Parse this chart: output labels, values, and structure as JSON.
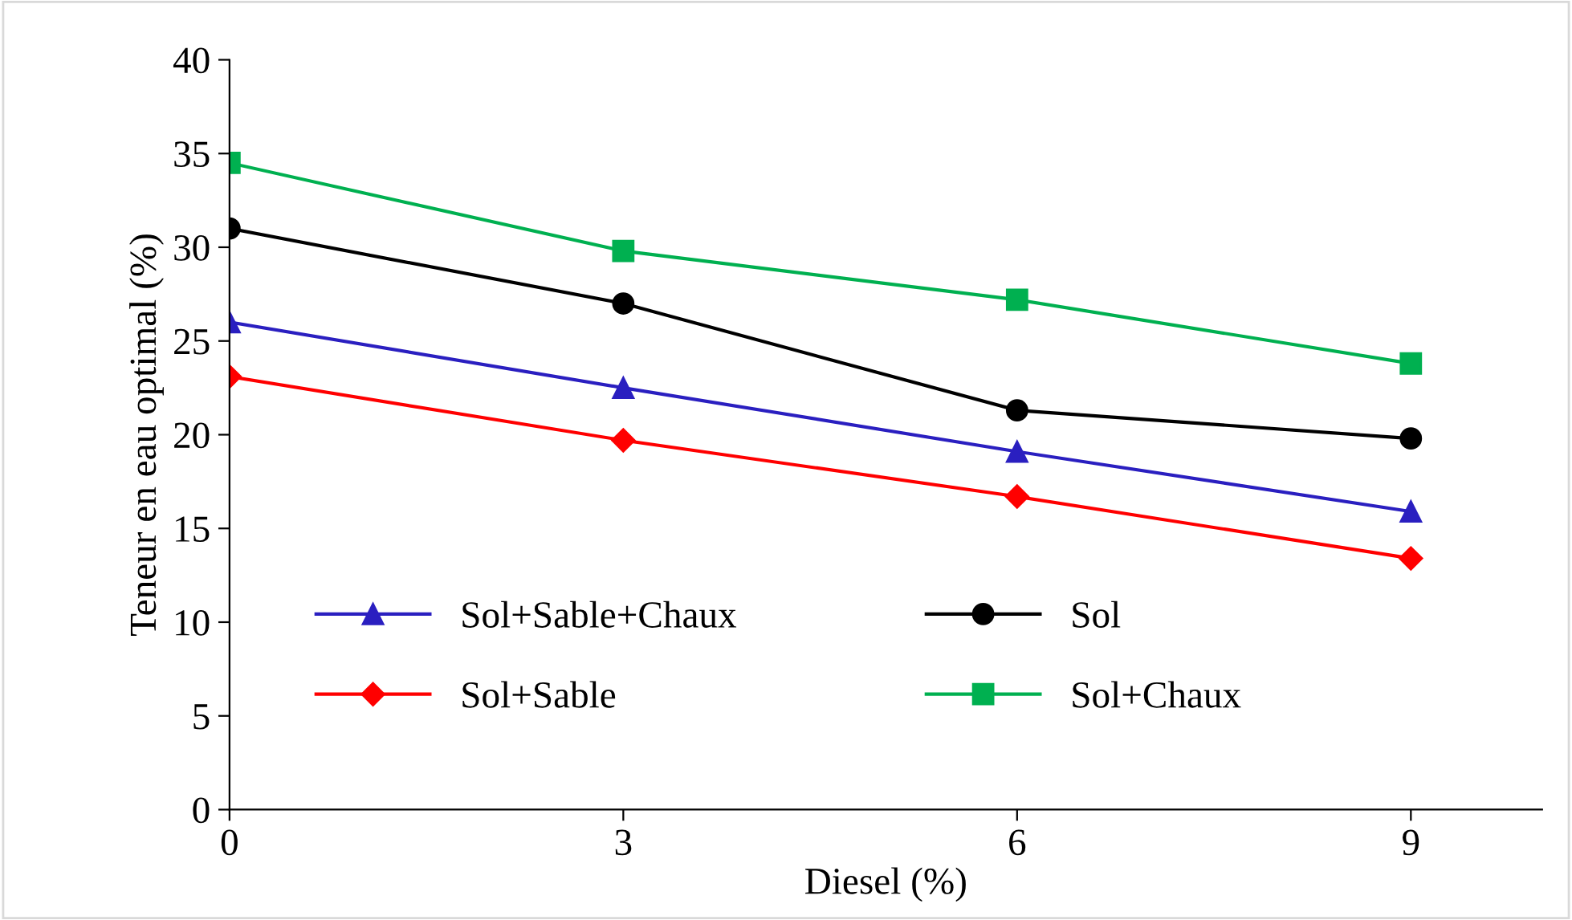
{
  "chart_data": {
    "type": "line",
    "xlabel": "Diesel (%)",
    "ylabel": "Teneur en eau optimal (%)",
    "x": [
      0,
      3,
      6,
      9
    ],
    "xlim": [
      0,
      10
    ],
    "xticks": [
      0,
      3,
      6,
      9
    ],
    "ylim": [
      0,
      40
    ],
    "yticks": [
      0,
      5,
      10,
      15,
      20,
      25,
      30,
      35,
      40
    ],
    "grid": false,
    "legend": "bottom left",
    "series": [
      {
        "name": "Sol+Sable+Chaux",
        "color": "#2a1fc0",
        "marker": "triangle",
        "values": [
          26.0,
          22.5,
          19.1,
          15.9
        ]
      },
      {
        "name": "Sol",
        "color": "#000000",
        "marker": "circle",
        "values": [
          31.0,
          27.0,
          21.3,
          19.8
        ]
      },
      {
        "name": "Sol+Sable",
        "color": "#ff0000",
        "marker": "diamond",
        "values": [
          23.1,
          19.7,
          16.7,
          13.4
        ]
      },
      {
        "name": "Sol+Chaux",
        "color": "#00b050",
        "marker": "square",
        "values": [
          34.5,
          29.8,
          27.2,
          23.8
        ]
      }
    ]
  }
}
